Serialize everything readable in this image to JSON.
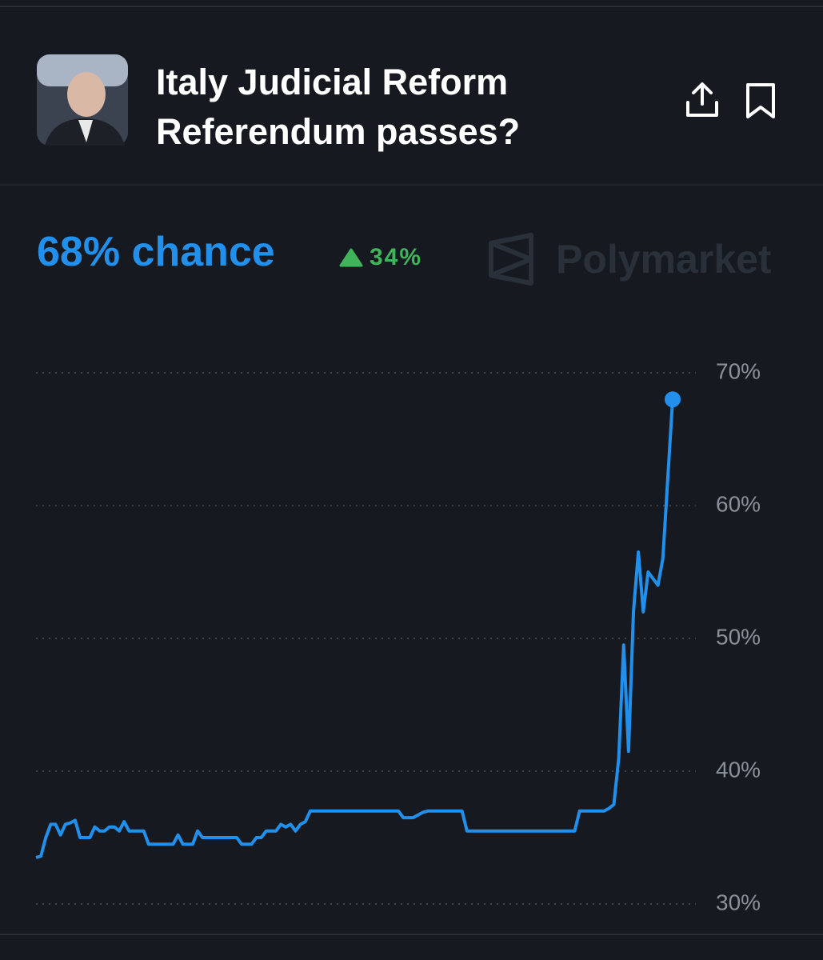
{
  "header": {
    "title": "Italy Judicial Reform Referendum passes?",
    "headline": "68% chance",
    "change": "34%",
    "brand": "Polymarket"
  },
  "chart_data": {
    "type": "line",
    "series": [
      {
        "color": "#2190ec",
        "values": [
          33.5,
          33.6,
          35,
          36,
          36,
          35.2,
          36,
          36.1,
          36.3,
          35,
          35,
          35,
          35.8,
          35.5,
          35.5,
          35.8,
          35.8,
          35.5,
          36.2,
          35.5,
          35.5,
          35.5,
          35.5,
          34.5,
          34.5,
          34.5,
          34.5,
          34.5,
          34.5,
          35.2,
          34.5,
          34.5,
          34.5,
          35.5,
          35,
          35,
          35,
          35,
          35,
          35,
          35,
          35,
          34.5,
          34.5,
          34.5,
          35,
          35,
          35.5,
          35.5,
          35.5,
          36,
          35.8,
          36,
          35.5,
          36,
          36.2,
          37,
          37,
          37,
          37,
          37,
          37,
          37,
          37,
          37,
          37,
          37,
          37,
          37,
          37,
          37,
          37,
          37,
          37,
          37,
          36.5,
          36.5,
          36.5,
          36.7,
          36.9,
          37,
          37,
          37,
          37,
          37,
          37,
          37,
          37,
          35.5,
          35.5,
          35.5,
          35.5,
          35.5,
          35.5,
          35.5,
          35.5,
          35.5,
          35.5,
          35.5,
          35.5,
          35.5,
          35.5,
          35.5,
          35.5,
          35.5,
          35.5,
          35.5,
          35.5,
          35.5,
          35.5,
          35.5,
          37,
          37,
          37,
          37,
          37,
          37,
          37.2,
          37.5,
          41,
          49.5,
          41.5,
          52,
          56.5,
          52,
          55,
          54.5,
          54,
          56,
          62,
          68
        ]
      }
    ],
    "ylim": [
      30,
      70
    ],
    "yticks": [
      {
        "value": 30,
        "label": "30%"
      },
      {
        "value": 40,
        "label": "40%"
      },
      {
        "value": 50,
        "label": "50%"
      },
      {
        "value": 60,
        "label": "60%"
      },
      {
        "value": 70,
        "label": "70%"
      }
    ],
    "grid": true
  }
}
